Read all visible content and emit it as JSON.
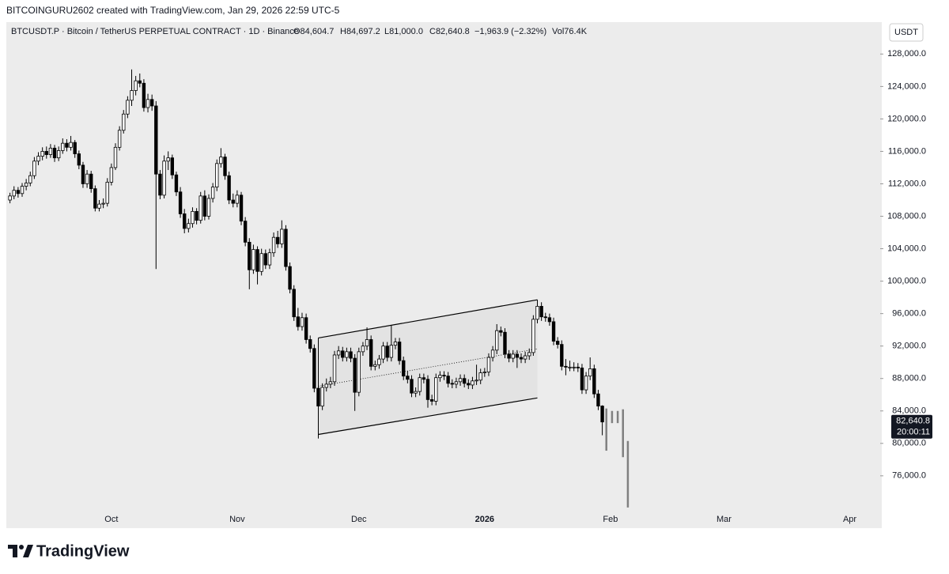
{
  "header": {
    "title": "BITCOINGURU2602 created with TradingView.com, Jan 29, 2026 22:59 UTC-5",
    "symbol": "BTCUSDT.P · Bitcoin / TetherUS PERPETUAL CONTRACT · 1D · Binance",
    "legend": [
      "O84,604.7",
      "H84,697.2",
      "L81,000.0",
      "C82,640.8",
      "−1,963.9 (−2.32%)",
      "Vol76.4K"
    ],
    "currency": "USDT"
  },
  "footer": {
    "logo": "TradingView"
  },
  "chart_data": {
    "type": "candlestick",
    "up_color": "#ffffff",
    "down_color": "#000000",
    "wick_color": "#000000",
    "xlim": [
      -25.9,
      189.5
    ],
    "ylim": [
      71500,
      129300
    ],
    "xticks": [
      {
        "value": 0,
        "label": "Oct"
      },
      {
        "value": 31,
        "label": "Nov"
      },
      {
        "value": 61,
        "label": "Dec"
      },
      {
        "value": 92,
        "label": "2026"
      },
      {
        "value": 123,
        "label": "Feb"
      },
      {
        "value": 151,
        "label": "Mar"
      },
      {
        "value": 182,
        "label": "Apr"
      }
    ],
    "yticks": [
      {
        "value": 76000,
        "label": "76,000.0"
      },
      {
        "value": 80000,
        "label": "80,000.0"
      },
      {
        "value": 84000,
        "label": "84,000.0"
      },
      {
        "value": 88000,
        "label": "88,000.0"
      },
      {
        "value": 92000,
        "label": "92,000.0"
      },
      {
        "value": 96000,
        "label": "96,000.0"
      },
      {
        "value": 100000,
        "label": "100,000.0"
      },
      {
        "value": 104000,
        "label": "104,000.0"
      },
      {
        "value": 108000,
        "label": "108,000.0"
      },
      {
        "value": 112000,
        "label": "112,000.0"
      },
      {
        "value": 116000,
        "label": "116,000.0"
      },
      {
        "value": 120000,
        "label": "120,000.0"
      },
      {
        "value": 124000,
        "label": "124,000.0"
      },
      {
        "value": 128000,
        "label": "128,000.0"
      }
    ],
    "grid": false,
    "x": [
      -25,
      -24,
      -23,
      -22,
      -21,
      -20,
      -19,
      -18,
      -17,
      -16,
      -15,
      -14,
      -13,
      -12,
      -11,
      -10,
      -9,
      -8,
      -7,
      -6,
      -5,
      -4,
      -3,
      -2,
      -1,
      0,
      1,
      2,
      3,
      4,
      5,
      6,
      7,
      8,
      9,
      10,
      11,
      12,
      13,
      14,
      15,
      16,
      17,
      18,
      19,
      20,
      21,
      22,
      23,
      24,
      25,
      26,
      27,
      28,
      29,
      30,
      31,
      32,
      33,
      34,
      35,
      36,
      37,
      38,
      39,
      40,
      41,
      42,
      43,
      44,
      45,
      46,
      47,
      48,
      49,
      50,
      51,
      52,
      53,
      54,
      55,
      56,
      57,
      58,
      59,
      60,
      61,
      62,
      63,
      64,
      65,
      66,
      67,
      68,
      69,
      70,
      71,
      72,
      73,
      74,
      75,
      76,
      77,
      78,
      79,
      80,
      81,
      82,
      83,
      84,
      85,
      86,
      87,
      88,
      89,
      90,
      91,
      92,
      93,
      94,
      95,
      96,
      97,
      98,
      99,
      100,
      101,
      102,
      103,
      104,
      105,
      106,
      107,
      108,
      109,
      110,
      111,
      112,
      113,
      114,
      115,
      116,
      117,
      118,
      119,
      120,
      121
    ],
    "candles": [
      [
        110000,
        110900,
        109600,
        110500
      ],
      [
        110500,
        111700,
        110100,
        111200
      ],
      [
        111200,
        111600,
        110300,
        110800
      ],
      [
        110800,
        112100,
        110400,
        111700
      ],
      [
        111700,
        112600,
        111200,
        112100
      ],
      [
        112100,
        113500,
        111700,
        113000
      ],
      [
        113000,
        115300,
        112600,
        114800
      ],
      [
        114800,
        115900,
        114300,
        115400
      ],
      [
        115400,
        116500,
        114900,
        116000
      ],
      [
        116000,
        116600,
        115100,
        115600
      ],
      [
        115600,
        116900,
        115200,
        116400
      ],
      [
        116400,
        116800,
        114700,
        115200
      ],
      [
        115200,
        116600,
        114800,
        116100
      ],
      [
        116100,
        117600,
        115700,
        117000
      ],
      [
        117000,
        117500,
        116000,
        116500
      ],
      [
        116500,
        117900,
        116100,
        117100
      ],
      [
        117100,
        117400,
        115200,
        115700
      ],
      [
        115700,
        116100,
        113800,
        114300
      ],
      [
        114300,
        114700,
        111500,
        112000
      ],
      [
        112000,
        113700,
        111500,
        113200
      ],
      [
        113200,
        113600,
        110900,
        111400
      ],
      [
        111400,
        111800,
        108600,
        109000
      ],
      [
        109000,
        110000,
        108600,
        109500
      ],
      [
        109500,
        110200,
        109000,
        109600
      ],
      [
        109600,
        112700,
        109200,
        112200
      ],
      [
        112200,
        114500,
        111800,
        114000
      ],
      [
        114000,
        117000,
        113700,
        116500
      ],
      [
        116500,
        119100,
        116100,
        118600
      ],
      [
        118600,
        121100,
        118200,
        120600
      ],
      [
        120600,
        122800,
        120100,
        122300
      ],
      [
        122300,
        126100,
        121600,
        123500
      ],
      [
        123500,
        125300,
        122900,
        124700
      ],
      [
        124700,
        125600,
        123900,
        124400
      ],
      [
        124400,
        124900,
        120900,
        121400
      ],
      [
        121400,
        123100,
        120800,
        122400
      ],
      [
        122400,
        123000,
        121000,
        121600
      ],
      [
        121600,
        122200,
        101500,
        113200
      ],
      [
        113200,
        113700,
        110100,
        110600
      ],
      [
        110600,
        115500,
        110200,
        114800
      ],
      [
        114800,
        116000,
        113700,
        115200
      ],
      [
        115200,
        115600,
        112600,
        113100
      ],
      [
        113100,
        113500,
        110500,
        111000
      ],
      [
        111000,
        111600,
        107800,
        108300
      ],
      [
        108300,
        108900,
        105900,
        106500
      ],
      [
        106500,
        107700,
        106000,
        107100
      ],
      [
        107100,
        109100,
        106600,
        108600
      ],
      [
        108600,
        109000,
        107000,
        107500
      ],
      [
        107500,
        111000,
        107100,
        110500
      ],
      [
        110500,
        111200,
        107500,
        108000
      ],
      [
        108000,
        110700,
        107600,
        110200
      ],
      [
        110200,
        112100,
        109700,
        111600
      ],
      [
        111600,
        115000,
        111100,
        114500
      ],
      [
        114500,
        116400,
        114000,
        115300
      ],
      [
        115300,
        115700,
        112500,
        113000
      ],
      [
        113000,
        113500,
        109500,
        110000
      ],
      [
        110000,
        110800,
        109100,
        109600
      ],
      [
        109600,
        111200,
        109100,
        110600
      ],
      [
        110600,
        111000,
        106900,
        107400
      ],
      [
        107400,
        107900,
        104300,
        104800
      ],
      [
        104800,
        105300,
        99000,
        101400
      ],
      [
        101400,
        104500,
        100900,
        103900
      ],
      [
        103900,
        104300,
        99600,
        101200
      ],
      [
        101200,
        104000,
        100700,
        103400
      ],
      [
        103400,
        103900,
        101500,
        102000
      ],
      [
        102000,
        104000,
        101500,
        103500
      ],
      [
        103500,
        106000,
        103000,
        105400
      ],
      [
        105400,
        106200,
        104100,
        104600
      ],
      [
        104600,
        107500,
        104100,
        106400
      ],
      [
        106400,
        106900,
        101300,
        101800
      ],
      [
        101800,
        102300,
        98500,
        99000
      ],
      [
        99000,
        99500,
        95100,
        95600
      ],
      [
        95600,
        96700,
        93900,
        94400
      ],
      [
        94400,
        96100,
        93900,
        95500
      ],
      [
        95500,
        96000,
        92300,
        92800
      ],
      [
        92800,
        93300,
        91200,
        91700
      ],
      [
        91700,
        92200,
        86300,
        86800
      ],
      [
        86800,
        87500,
        80600,
        84600
      ],
      [
        84600,
        87400,
        84100,
        86900
      ],
      [
        86900,
        88000,
        86400,
        87300
      ],
      [
        87300,
        88200,
        86800,
        87600
      ],
      [
        87600,
        91400,
        87100,
        90900
      ],
      [
        90900,
        92000,
        90400,
        91400
      ],
      [
        91400,
        91900,
        90100,
        90600
      ],
      [
        90600,
        91800,
        90100,
        91300
      ],
      [
        91300,
        91800,
        90000,
        90500
      ],
      [
        90500,
        91000,
        84000,
        86300
      ],
      [
        86300,
        91800,
        85800,
        91300
      ],
      [
        91300,
        92500,
        90800,
        92000
      ],
      [
        92000,
        94300,
        91500,
        92800
      ],
      [
        92800,
        93300,
        89000,
        89500
      ],
      [
        89500,
        90200,
        89000,
        89700
      ],
      [
        89700,
        90900,
        89200,
        90400
      ],
      [
        90400,
        92500,
        89900,
        92000
      ],
      [
        92000,
        92500,
        90100,
        90600
      ],
      [
        90600,
        94600,
        90100,
        92100
      ],
      [
        92100,
        93000,
        91600,
        92500
      ],
      [
        92500,
        93000,
        89700,
        90200
      ],
      [
        90200,
        90700,
        87800,
        88300
      ],
      [
        88300,
        88900,
        87400,
        87900
      ],
      [
        87900,
        88400,
        85700,
        86200
      ],
      [
        86200,
        86900,
        85700,
        86400
      ],
      [
        86400,
        88600,
        85900,
        88100
      ],
      [
        88100,
        88600,
        87400,
        87900
      ],
      [
        87900,
        88400,
        84400,
        85400
      ],
      [
        85400,
        86000,
        84700,
        85200
      ],
      [
        85200,
        88600,
        84700,
        88100
      ],
      [
        88100,
        88900,
        87600,
        88400
      ],
      [
        88400,
        88900,
        87800,
        88300
      ],
      [
        88300,
        88800,
        86900,
        87400
      ],
      [
        87400,
        87900,
        86800,
        87300
      ],
      [
        87300,
        88100,
        86800,
        87600
      ],
      [
        87600,
        88500,
        87100,
        88000
      ],
      [
        88000,
        88500,
        86900,
        87400
      ],
      [
        87400,
        87900,
        86700,
        87200
      ],
      [
        87200,
        88200,
        86700,
        87700
      ],
      [
        87700,
        89700,
        87200,
        87800
      ],
      [
        87800,
        89200,
        87300,
        88700
      ],
      [
        88700,
        89300,
        88200,
        88800
      ],
      [
        88800,
        91100,
        88300,
        90600
      ],
      [
        90600,
        92000,
        90100,
        91500
      ],
      [
        91500,
        94700,
        91000,
        93900
      ],
      [
        93900,
        94400,
        93200,
        93700
      ],
      [
        93700,
        94200,
        90500,
        91000
      ],
      [
        91000,
        91500,
        90000,
        90500
      ],
      [
        90500,
        91500,
        90000,
        91000
      ],
      [
        91000,
        91500,
        89300,
        90600
      ],
      [
        90600,
        91100,
        89900,
        90400
      ],
      [
        90400,
        91300,
        89900,
        90800
      ],
      [
        90800,
        91700,
        90300,
        91200
      ],
      [
        91200,
        95800,
        90800,
        95300
      ],
      [
        95300,
        97700,
        94800,
        96900
      ],
      [
        96900,
        97400,
        95100,
        95600
      ],
      [
        95600,
        96100,
        95000,
        95500
      ],
      [
        95500,
        96000,
        94500,
        95000
      ],
      [
        95000,
        95500,
        92100,
        92600
      ],
      [
        92600,
        93100,
        91700,
        92200
      ],
      [
        92200,
        92700,
        89000,
        89500
      ],
      [
        89500,
        90400,
        88400,
        89400
      ],
      [
        89400,
        90200,
        88900,
        89400
      ],
      [
        89400,
        90000,
        88900,
        89400
      ],
      [
        89400,
        89900,
        88800,
        89300
      ],
      [
        89300,
        89800,
        86100,
        86600
      ],
      [
        86600,
        88800,
        86100,
        88300
      ],
      [
        88300,
        90600,
        87800,
        89200
      ],
      [
        89200,
        89700,
        85600,
        86100
      ],
      [
        86100,
        86600,
        84100,
        84600
      ],
      [
        84604.7,
        84697.2,
        81000,
        82640.8
      ]
    ],
    "projection": {
      "color": "#808080",
      "x": [
        122,
        123.4,
        124.8,
        126.1,
        127.3
      ],
      "high": [
        84300,
        84000,
        84000,
        84200,
        80300
      ],
      "low": [
        79100,
        82500,
        82500,
        78300,
        72100
      ]
    },
    "channel": {
      "color": "#000000",
      "fill": "#e3e3e3",
      "x": [
        51,
        105
      ],
      "upper": [
        93000,
        97700
      ],
      "lower": [
        81100,
        85600
      ]
    },
    "price_label": {
      "value": 82640.8,
      "label": "82,640.8",
      "countdown": "20:00:11"
    }
  }
}
